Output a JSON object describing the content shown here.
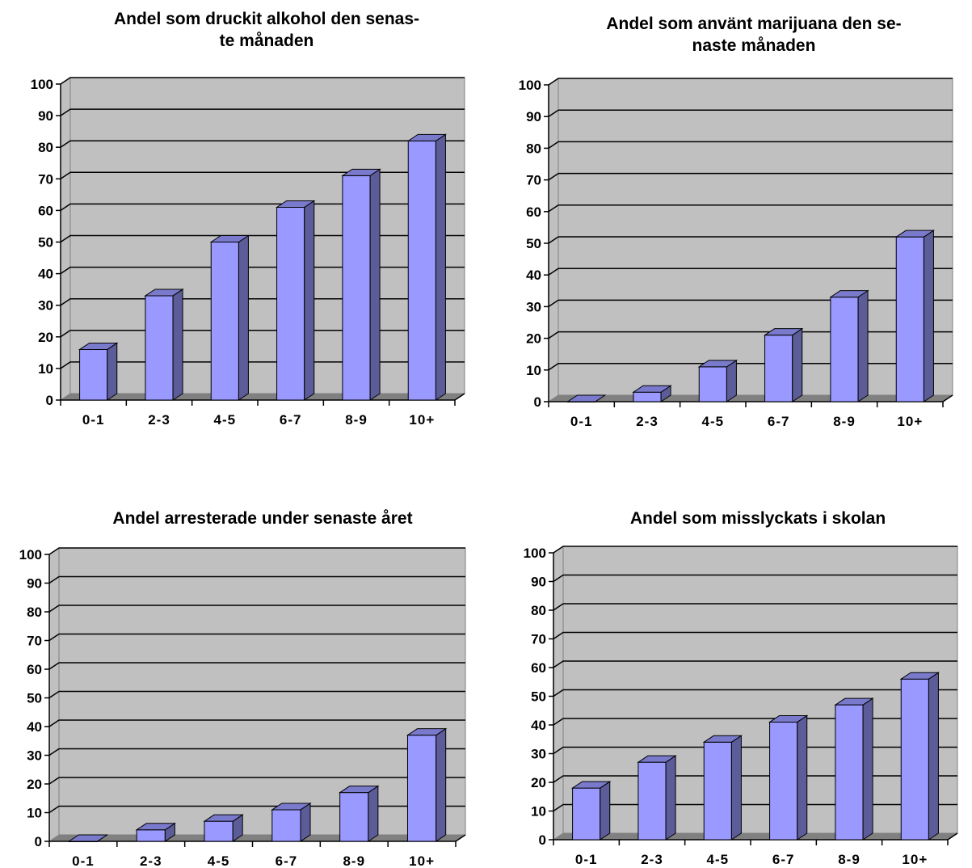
{
  "chart_data": [
    {
      "type": "bar",
      "title_lines": [
        "Andel som druckit alkohol den senas-",
        "te månaden"
      ],
      "categories": [
        "0-1",
        "2-3",
        "4-5",
        "6-7",
        "8-9",
        "10+"
      ],
      "values": [
        16,
        33,
        50,
        61,
        71,
        82
      ],
      "yticks": [
        "0",
        "10",
        "20",
        "30",
        "40",
        "50",
        "60",
        "70",
        "80",
        "90",
        "100"
      ],
      "ylim": [
        0,
        100
      ],
      "grid": true
    },
    {
      "type": "bar",
      "title_lines": [
        "Andel som använt marijuana den se-",
        "naste månaden"
      ],
      "categories": [
        "0-1",
        "2-3",
        "4-5",
        "6-7",
        "8-9",
        "10+"
      ],
      "values": [
        0,
        3,
        11,
        21,
        33,
        52
      ],
      "yticks": [
        "0",
        "10",
        "20",
        "30",
        "40",
        "50",
        "60",
        "70",
        "80",
        "90",
        "100"
      ],
      "ylim": [
        0,
        100
      ],
      "grid": true
    },
    {
      "type": "bar",
      "title_lines": [
        "Andel arresterade under senaste året"
      ],
      "categories": [
        "0-1",
        "2-3",
        "4-5",
        "6-7",
        "8-9",
        "10+"
      ],
      "values": [
        0,
        4,
        7,
        11,
        17,
        37
      ],
      "yticks": [
        "0",
        "10",
        "20",
        "30",
        "40",
        "50",
        "60",
        "70",
        "80",
        "90",
        "100"
      ],
      "ylim": [
        0,
        100
      ],
      "grid": true
    },
    {
      "type": "bar",
      "title_lines": [
        "Andel som misslyckats i skolan"
      ],
      "categories": [
        "0-1",
        "2-3",
        "4-5",
        "6-7",
        "8-9",
        "10+"
      ],
      "values": [
        18,
        27,
        34,
        41,
        47,
        56
      ],
      "yticks": [
        "0",
        "10",
        "20",
        "30",
        "40",
        "50",
        "60",
        "70",
        "80",
        "90",
        "100"
      ],
      "ylim": [
        0,
        100
      ],
      "grid": true
    }
  ],
  "colors": {
    "plot_background": "#c0c0c0",
    "bar_front": "#9999ff",
    "bar_side": "#5c5c99",
    "bar_top": "#7a7acc",
    "floor": "#808080",
    "grid": "#000000"
  }
}
